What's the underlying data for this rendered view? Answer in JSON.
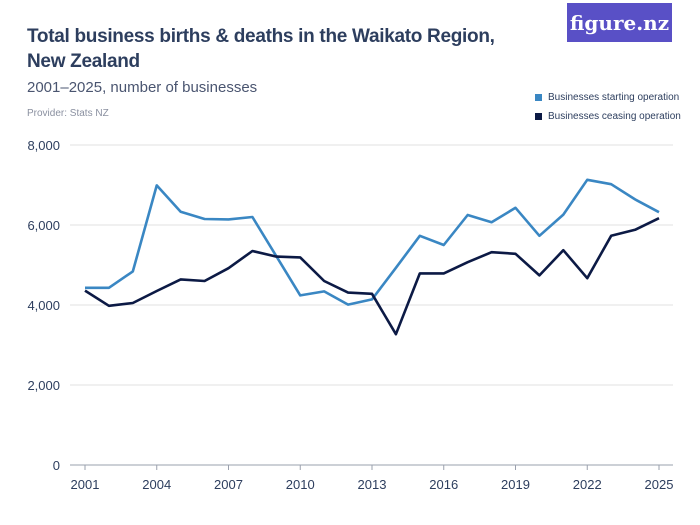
{
  "header": {
    "title": "Total business births & deaths in the Waikato Region, New Zealand",
    "subtitle": "2001–2025, number of businesses",
    "provider": "Provider: Stats NZ",
    "logo": "figure.nz",
    "logo_color": "#5950c6"
  },
  "chart_data": {
    "type": "line",
    "title": "Total business births & deaths in the Waikato Region, New Zealand",
    "subtitle": "2001–2025, number of businesses",
    "x": [
      2001,
      2002,
      2003,
      2004,
      2005,
      2006,
      2007,
      2008,
      2009,
      2010,
      2011,
      2012,
      2013,
      2014,
      2015,
      2016,
      2017,
      2018,
      2019,
      2020,
      2021,
      2022,
      2023,
      2024,
      2025
    ],
    "xticks": [
      "2001",
      "2004",
      "2007",
      "2010",
      "2013",
      "2016",
      "2019",
      "2022",
      "2025"
    ],
    "yticks": [
      "0",
      "2,000",
      "4,000",
      "6,000",
      "8,000"
    ],
    "ylim": [
      0,
      8000
    ],
    "grid": true,
    "legend": "top-right",
    "series": [
      {
        "name": "Businesses starting operation",
        "color": "#3a87c3",
        "values": [
          4430,
          4430,
          4840,
          6990,
          6330,
          6150,
          6140,
          6200,
          5220,
          4240,
          4340,
          4010,
          4140,
          4930,
          5730,
          5500,
          6250,
          6070,
          6430,
          5730,
          6260,
          7130,
          7020,
          6640,
          6320
        ]
      },
      {
        "name": "Businesses ceasing operation",
        "color": "#0c1a45",
        "values": [
          4360,
          3980,
          4050,
          4350,
          4640,
          4600,
          4920,
          5350,
          5210,
          5190,
          4600,
          4310,
          4280,
          3270,
          4790,
          4790,
          5070,
          5320,
          5280,
          4740,
          5370,
          4670,
          5730,
          5880,
          6170
        ]
      }
    ]
  }
}
